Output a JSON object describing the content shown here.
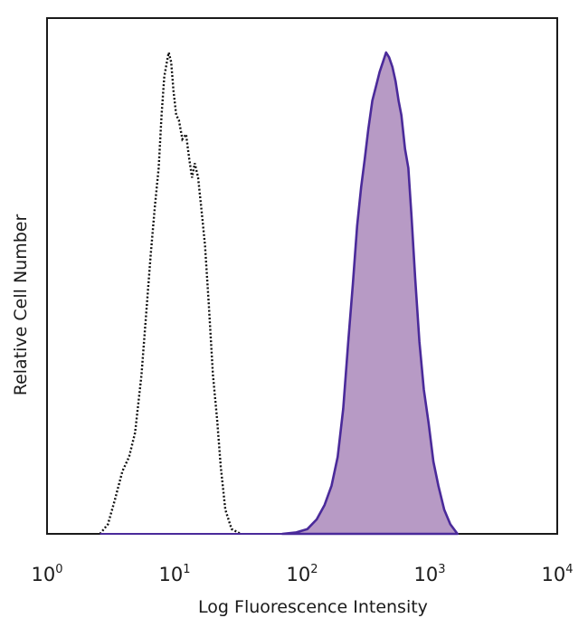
{
  "chart_data": {
    "type": "area",
    "title": "",
    "xlabel": "Log Fluorescence Intensity",
    "ylabel": "Relative Cell Number",
    "xscale": "log",
    "xlim": [
      1,
      10000
    ],
    "ylim": [
      0,
      1.08
    ],
    "grid": false,
    "legend": "none",
    "x_ticks": [
      {
        "base": "10",
        "exp": "0"
      },
      {
        "base": "10",
        "exp": "1"
      },
      {
        "base": "10",
        "exp": "2"
      },
      {
        "base": "10",
        "exp": "3"
      },
      {
        "base": "10",
        "exp": "4"
      }
    ],
    "series": [
      {
        "style": "dotted-outline",
        "color": "#111111",
        "points": [
          [
            2.6,
            0
          ],
          [
            3.0,
            0.02
          ],
          [
            3.4,
            0.07
          ],
          [
            3.9,
            0.13
          ],
          [
            4.4,
            0.16
          ],
          [
            4.9,
            0.21
          ],
          [
            5.5,
            0.33
          ],
          [
            6.0,
            0.46
          ],
          [
            6.5,
            0.58
          ],
          [
            7.0,
            0.68
          ],
          [
            7.5,
            0.76
          ],
          [
            7.9,
            0.87
          ],
          [
            8.3,
            0.95
          ],
          [
            8.7,
            0.98
          ],
          [
            9.0,
            1.0
          ],
          [
            9.4,
            0.98
          ],
          [
            9.8,
            0.92
          ],
          [
            10.3,
            0.87
          ],
          [
            10.8,
            0.86
          ],
          [
            11.5,
            0.82
          ],
          [
            12.3,
            0.83
          ],
          [
            13.0,
            0.78
          ],
          [
            13.7,
            0.74
          ],
          [
            14.4,
            0.77
          ],
          [
            15.3,
            0.74
          ],
          [
            16.3,
            0.67
          ],
          [
            17.3,
            0.6
          ],
          [
            18.5,
            0.48
          ],
          [
            20.0,
            0.33
          ],
          [
            21.5,
            0.24
          ],
          [
            23.0,
            0.14
          ],
          [
            25.0,
            0.05
          ],
          [
            28.0,
            0.01
          ],
          [
            33.0,
            0.0
          ]
        ]
      },
      {
        "style": "filled",
        "color": "#4a2a9a",
        "fill": "#b79ac5",
        "points": [
          [
            70,
            0
          ],
          [
            90,
            0.003
          ],
          [
            110,
            0.01
          ],
          [
            130,
            0.03
          ],
          [
            150,
            0.06
          ],
          [
            170,
            0.1
          ],
          [
            190,
            0.16
          ],
          [
            210,
            0.26
          ],
          [
            230,
            0.4
          ],
          [
            250,
            0.52
          ],
          [
            270,
            0.64
          ],
          [
            290,
            0.72
          ],
          [
            310,
            0.78
          ],
          [
            330,
            0.84
          ],
          [
            355,
            0.9
          ],
          [
            380,
            0.93
          ],
          [
            405,
            0.96
          ],
          [
            430,
            0.98
          ],
          [
            455,
            1.0
          ],
          [
            480,
            0.99
          ],
          [
            510,
            0.97
          ],
          [
            540,
            0.94
          ],
          [
            570,
            0.9
          ],
          [
            600,
            0.87
          ],
          [
            640,
            0.8
          ],
          [
            680,
            0.76
          ],
          [
            720,
            0.66
          ],
          [
            770,
            0.53
          ],
          [
            830,
            0.4
          ],
          [
            900,
            0.3
          ],
          [
            980,
            0.23
          ],
          [
            1070,
            0.15
          ],
          [
            1170,
            0.1
          ],
          [
            1300,
            0.05
          ],
          [
            1450,
            0.02
          ],
          [
            1650,
            0.0
          ]
        ]
      }
    ]
  }
}
